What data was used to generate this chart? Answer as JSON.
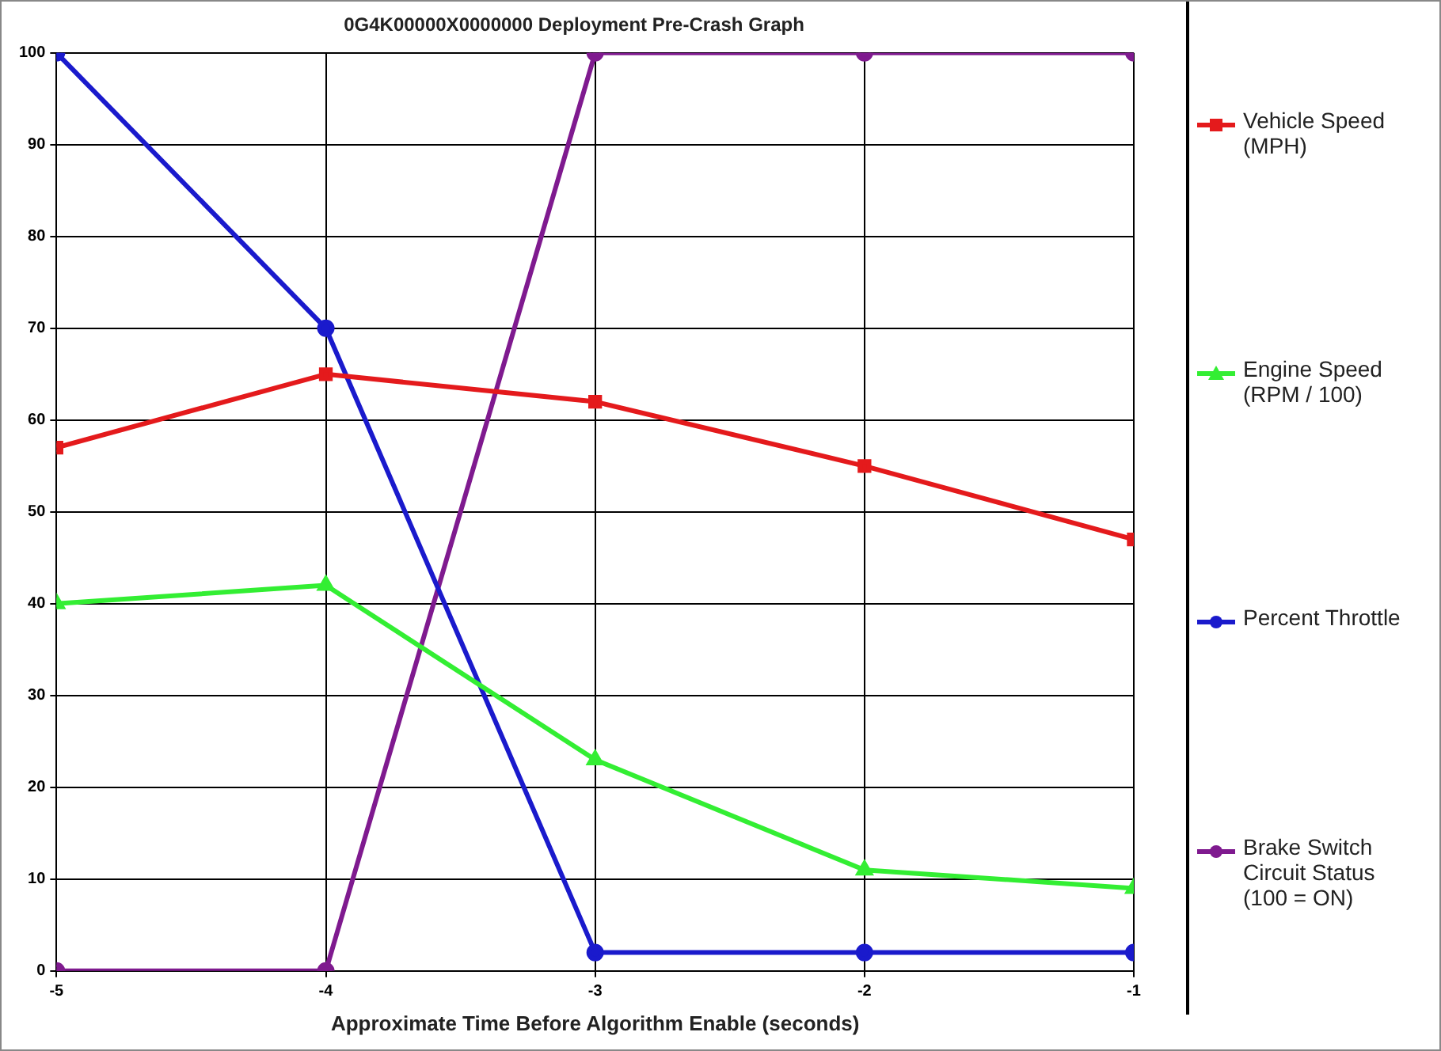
{
  "chart_data": {
    "type": "line",
    "title": "0G4K00000X0000000 Deployment Pre-Crash Graph",
    "xlabel": "Approximate Time Before Algorithm Enable (seconds)",
    "x": [
      -5,
      -4,
      -3,
      -2,
      -1
    ],
    "xlim": [
      -5,
      -1
    ],
    "xticks": [
      -5,
      -4,
      -3,
      -2,
      -1
    ],
    "ylim": [
      0,
      100
    ],
    "yticks": [
      0,
      10,
      20,
      30,
      40,
      50,
      60,
      70,
      80,
      90,
      100
    ],
    "grid": true,
    "legend": "right",
    "line_style": "solid",
    "series": [
      {
        "name": "Vehicle Speed (MPH)",
        "color": "#e41a1c",
        "marker": "square",
        "values": [
          57,
          65,
          62,
          55,
          47
        ]
      },
      {
        "name": "Engine Speed (RPM / 100)",
        "color": "#33ee33",
        "marker": "triangle",
        "values": [
          40,
          42,
          23,
          11,
          9
        ]
      },
      {
        "name": "Percent Throttle",
        "color": "#1a1acc",
        "marker": "circle",
        "values": [
          100,
          70,
          2,
          2,
          2
        ]
      },
      {
        "name": "Brake Switch Circuit Status (100 = ON)",
        "color": "#7f1a8f",
        "marker": "circle",
        "values": [
          0,
          0,
          100,
          100,
          100
        ]
      }
    ]
  }
}
